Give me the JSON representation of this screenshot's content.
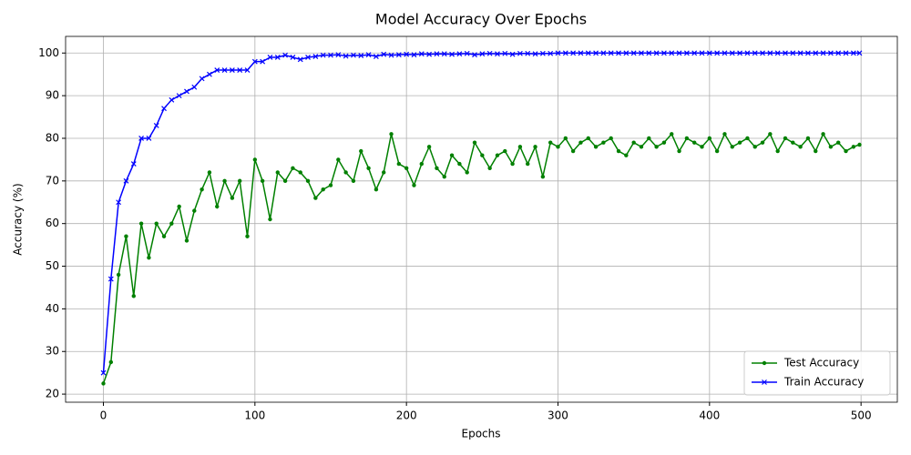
{
  "chart_data": {
    "type": "line",
    "title": "Model Accuracy Over Epochs",
    "x_label": "Epochs",
    "y_label": "Accuracy (%)",
    "x": [
      0,
      5,
      10,
      15,
      20,
      25,
      30,
      35,
      40,
      45,
      50,
      55,
      60,
      65,
      70,
      75,
      80,
      85,
      90,
      95,
      100,
      105,
      110,
      115,
      120,
      125,
      130,
      135,
      140,
      145,
      150,
      155,
      160,
      165,
      170,
      175,
      180,
      185,
      190,
      195,
      200,
      205,
      210,
      215,
      220,
      225,
      230,
      235,
      240,
      245,
      250,
      255,
      260,
      265,
      270,
      275,
      280,
      285,
      290,
      295,
      300,
      305,
      310,
      315,
      320,
      325,
      330,
      335,
      340,
      345,
      350,
      355,
      360,
      365,
      370,
      375,
      380,
      385,
      390,
      395,
      400,
      405,
      410,
      415,
      420,
      425,
      430,
      435,
      440,
      445,
      450,
      455,
      460,
      465,
      470,
      475,
      480,
      485,
      490,
      495,
      499
    ],
    "series": [
      {
        "name": "Test Accuracy",
        "color": "#008000",
        "marker": "circle",
        "values": [
          22.5,
          27.5,
          48,
          57,
          43,
          60,
          52,
          60,
          57,
          60,
          64,
          56,
          63,
          68,
          72,
          64,
          70,
          66,
          70,
          57,
          75,
          70,
          61,
          72,
          70,
          73,
          72,
          70,
          66,
          68,
          69,
          75,
          72,
          70,
          77,
          73,
          68,
          72,
          81,
          74,
          73,
          69,
          74,
          78,
          73,
          71,
          76,
          74,
          72,
          79,
          76,
          73,
          76,
          77,
          74,
          78,
          74,
          78,
          71,
          79,
          78,
          80,
          77,
          79,
          80,
          78,
          79,
          80,
          77,
          76,
          79,
          78,
          80,
          78,
          79,
          81,
          77,
          80,
          79,
          78,
          80,
          77,
          81,
          78,
          79,
          80,
          78,
          79,
          81,
          77,
          80,
          79,
          78,
          80,
          77,
          81,
          78,
          79,
          77,
          78,
          78.5
        ]
      },
      {
        "name": "Train Accuracy",
        "color": "#0000ff",
        "marker": "x",
        "values": [
          25,
          47,
          65,
          70,
          74,
          80,
          80,
          83,
          87,
          89,
          90,
          91,
          92,
          94,
          95,
          96,
          96,
          96,
          96,
          96,
          98,
          98,
          99,
          99,
          99.5,
          99,
          98.5,
          99,
          99.2,
          99.5,
          99.5,
          99.6,
          99.3,
          99.5,
          99.4,
          99.6,
          99.2,
          99.7,
          99.5,
          99.6,
          99.7,
          99.6,
          99.8,
          99.7,
          99.8,
          99.8,
          99.7,
          99.8,
          99.9,
          99.6,
          99.8,
          99.9,
          99.8,
          99.9,
          99.7,
          99.9,
          99.9,
          99.8,
          99.9,
          99.9,
          100,
          100,
          100,
          100,
          100,
          100,
          100,
          100,
          100,
          100,
          100,
          100,
          100,
          100,
          100,
          100,
          100,
          100,
          100,
          100,
          100,
          100,
          100,
          100,
          100,
          100,
          100,
          100,
          100,
          100,
          100,
          100,
          100,
          100,
          100,
          100,
          100,
          100,
          100,
          100,
          100
        ]
      }
    ],
    "xlim": [
      -24.95,
      523.95
    ],
    "ylim": [
      18.1,
      103.9
    ],
    "xticks": [
      0,
      100,
      200,
      300,
      400,
      500
    ],
    "yticks": [
      20,
      30,
      40,
      50,
      60,
      70,
      80,
      90,
      100
    ],
    "grid": true,
    "legend": "lower right"
  }
}
